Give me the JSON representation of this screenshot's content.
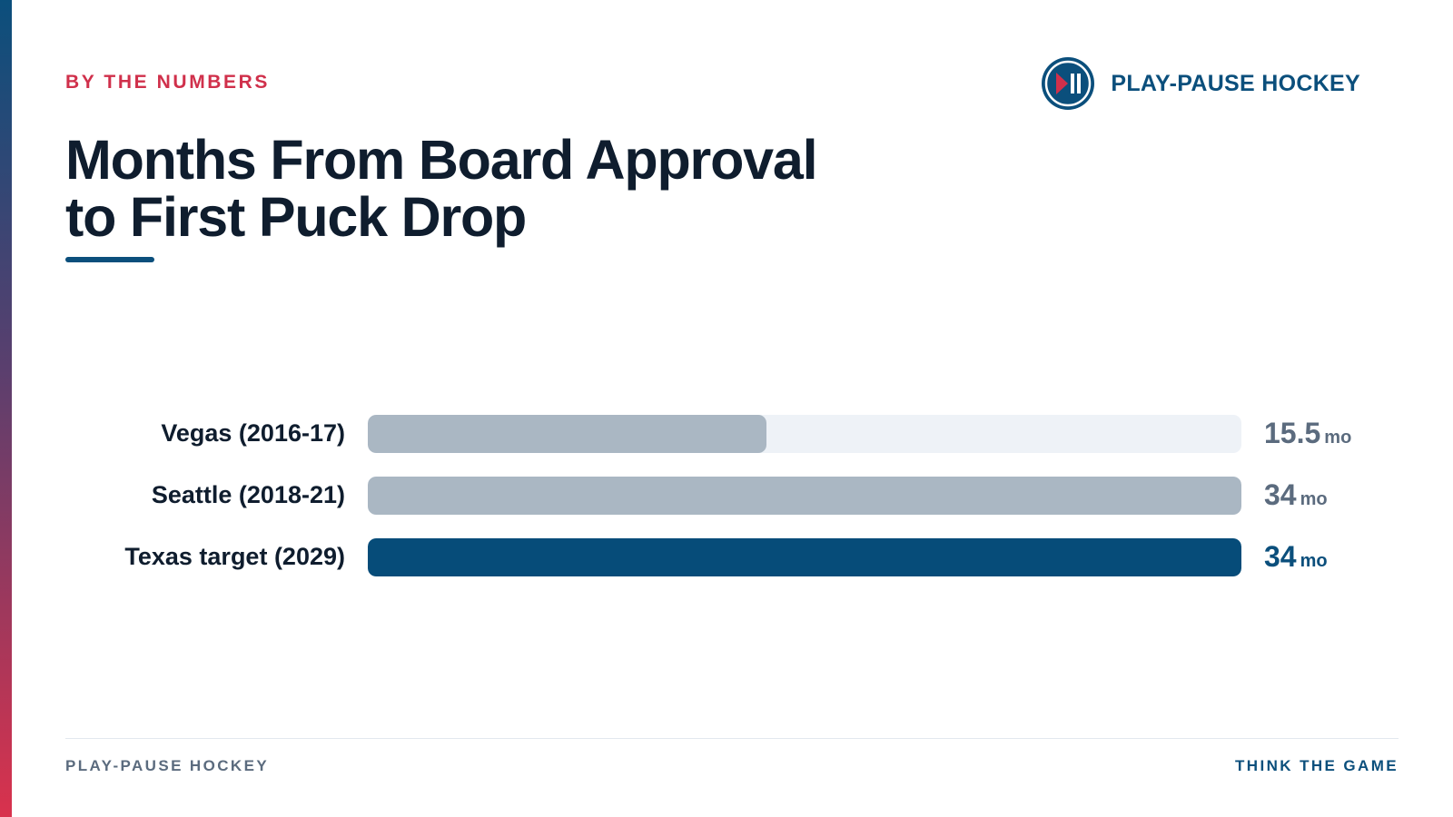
{
  "header": {
    "eyebrow": "BY THE NUMBERS",
    "brand_name": "PLAY-PAUSE HOCKEY",
    "brand_icon": "play-pause-icon"
  },
  "footer": {
    "left": "PLAY-PAUSE HOCKEY",
    "right": "THINK THE GAME"
  },
  "colors": {
    "accent_red": "#d0304b",
    "brand_blue": "#0b4f7c",
    "bar_gray": "#aab7c3",
    "track": "#eef2f7",
    "highlight_bar": "#064c79",
    "text_dark": "#0f1d2e",
    "text_muted": "#5b6b7e"
  },
  "chart_data": {
    "type": "bar",
    "orientation": "horizontal",
    "title": "Months From Board Approval to First Puck Drop",
    "title_lines": [
      "Months From Board Approval",
      "to First Puck Drop"
    ],
    "categories": [
      "Vegas (2016-17)",
      "Seattle (2018-21)",
      "Texas target (2029)"
    ],
    "values": [
      15.5,
      34,
      34
    ],
    "value_labels": [
      "15.5",
      "34",
      "34"
    ],
    "unit": "mo",
    "xlim": [
      0,
      34
    ],
    "highlight_index": 2,
    "grid": false,
    "legend": "none"
  }
}
